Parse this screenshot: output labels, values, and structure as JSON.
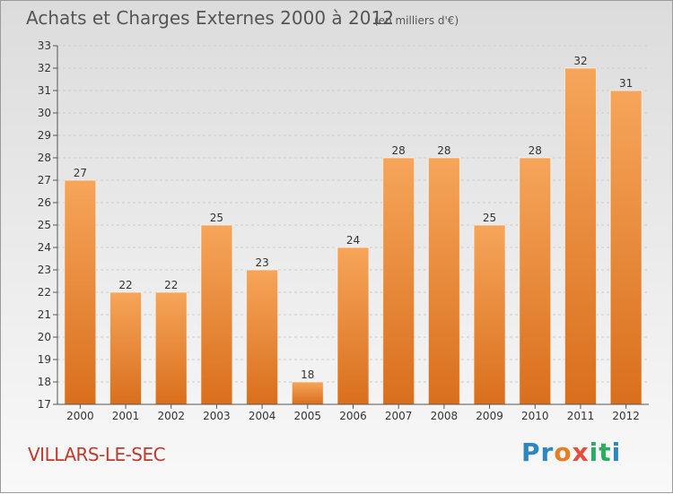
{
  "title": "Achats et Charges Externes 2000 à 2012",
  "unit": "(en milliers d'€)",
  "location": "VILLARS-LE-SEC",
  "logo": {
    "letters": [
      "P",
      "r",
      "o",
      "x",
      "i",
      "t",
      "i"
    ],
    "colors": [
      "#2e86c1",
      "#2e86c1",
      "#e67e22",
      "#e74c3c",
      "#27ae60",
      "#27ae60",
      "#2e86c1"
    ]
  },
  "colors": {
    "bar_top": "#f6a55a",
    "bar_bottom": "#d96f1c",
    "grid": "#cccccc",
    "title": "#555555",
    "location": "#c0392b"
  },
  "chart_data": {
    "type": "bar",
    "title": "Achats et Charges Externes 2000 à 2012",
    "subtitle": "(en milliers d'€)",
    "xlabel": "",
    "ylabel": "",
    "categories": [
      "2000",
      "2001",
      "2002",
      "2003",
      "2004",
      "2005",
      "2006",
      "2007",
      "2008",
      "2009",
      "2010",
      "2011",
      "2012"
    ],
    "values": [
      27,
      22,
      22,
      25,
      23,
      18,
      24,
      28,
      28,
      25,
      28,
      32,
      31
    ],
    "ylim": [
      17,
      33
    ],
    "yticks": [
      17,
      18,
      19,
      20,
      21,
      22,
      23,
      24,
      25,
      26,
      27,
      28,
      29,
      30,
      31,
      32,
      33
    ],
    "grid": "horizontal-dashed"
  }
}
